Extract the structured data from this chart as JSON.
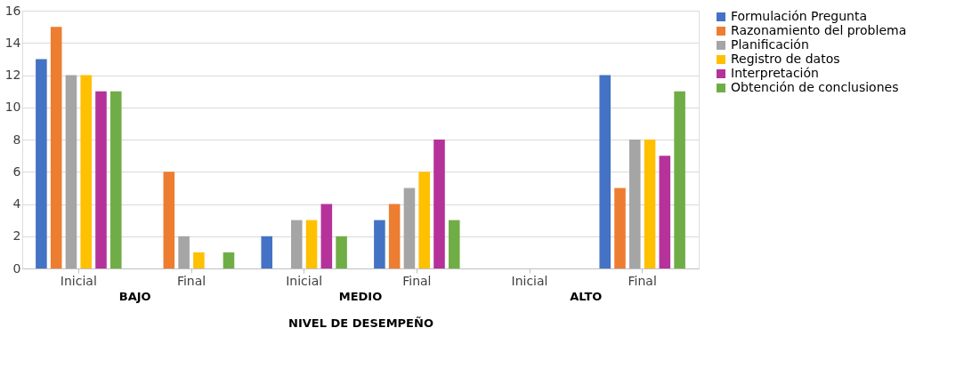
{
  "chart_data": {
    "type": "bar",
    "xlabel": "NIVEL DE DESEMPEÑO",
    "categories": [
      "Inicial",
      "Final",
      "Inicial",
      "Final",
      "Inicial",
      "Final"
    ],
    "annotations": [
      "BAJO",
      "MEDIO",
      "ALTO"
    ],
    "series": [
      {
        "name": "Formulación Pregunta",
        "color": "#4472c4",
        "values": [
          13,
          0,
          2,
          3,
          0,
          12
        ]
      },
      {
        "name": "Razonamiento del problema",
        "color": "#ed7d31",
        "values": [
          15,
          6,
          0,
          4,
          0,
          5
        ]
      },
      {
        "name": "Planificación",
        "color": "#a5a5a5",
        "values": [
          12,
          2,
          3,
          5,
          0,
          8
        ]
      },
      {
        "name": "Registro de datos",
        "color": "#ffc000",
        "values": [
          12,
          1,
          3,
          6,
          0,
          8
        ]
      },
      {
        "name": "Interpretación",
        "color": "#b5329a",
        "values": [
          11,
          0,
          4,
          8,
          0,
          7
        ]
      },
      {
        "name": "Obtención de conclusiones",
        "color": "#70ad47",
        "values": [
          11,
          1,
          2,
          3,
          0,
          11
        ]
      }
    ],
    "ylim": [
      0,
      16
    ],
    "yticks": [
      0,
      2,
      4,
      6,
      8,
      10,
      12,
      14,
      16
    ],
    "grid": "y",
    "legend": "right"
  }
}
